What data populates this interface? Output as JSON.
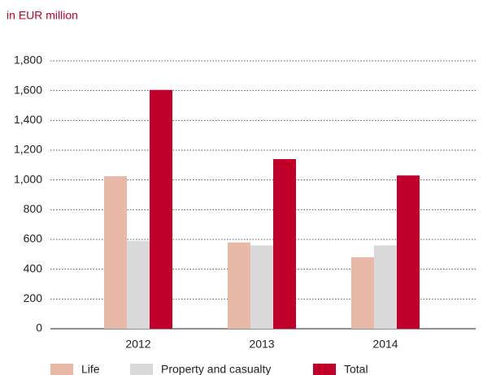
{
  "chart_data": {
    "type": "bar",
    "subtitle": "in EUR million",
    "categories": [
      "2012",
      "2013",
      "2014"
    ],
    "series": [
      {
        "name": "Life",
        "color": "#e8b9a6",
        "values": [
          1025,
          580,
          480
        ]
      },
      {
        "name": "Property and casualty",
        "color": "#d9d9d9",
        "values": [
          590,
          560,
          560
        ]
      },
      {
        "name": "Total",
        "color": "#c0002a",
        "values": [
          1605,
          1140,
          1030
        ]
      }
    ],
    "ylim": [
      0,
      1800
    ],
    "yticks": [
      0,
      200,
      400,
      600,
      800,
      {
        "value": 1000,
        "label": "1,000"
      },
      {
        "value": 1200,
        "label": "1,200"
      },
      {
        "value": 1400,
        "label": "1,400"
      },
      {
        "value": 1600,
        "label": "1,600"
      },
      {
        "value": 1800,
        "label": "1,800"
      }
    ],
    "grid": true,
    "legend": "bottom"
  }
}
